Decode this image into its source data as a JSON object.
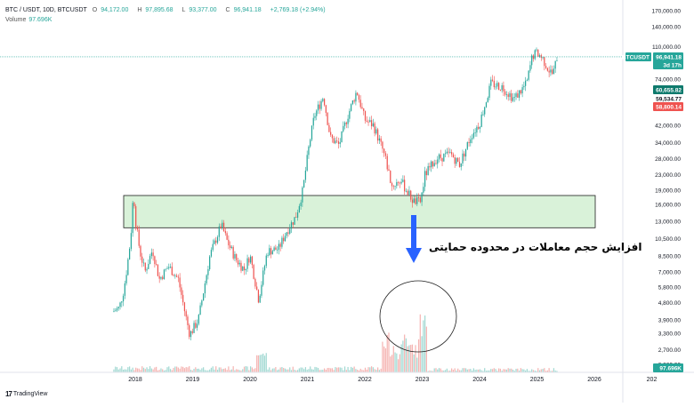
{
  "legend": {
    "symbol": "BTC / USDT, 10D, BTCUSDT",
    "open_label": "O",
    "open": "94,172.00",
    "high_label": "H",
    "high": "97,895.68",
    "low_label": "L",
    "low": "93,377.00",
    "close_label": "C",
    "close": "96,941.18",
    "change": "+2,769.18 (+2.94%)",
    "volume_label": "Volume",
    "volume_value": "97.696K"
  },
  "branding": {
    "logo_text": "TradingView"
  },
  "annotation": "افزایش حجم معاملات در محدوده حمایتی",
  "price_badges": {
    "ticker": "BTCUSDT",
    "current_price": "96,941.18",
    "countdown": "3d 17h",
    "level_1": "60,655.82",
    "level_2": "59,534.77",
    "level_3": "58,800.14",
    "volume": "97.696K"
  },
  "colors": {
    "up": "#26a69a",
    "down": "#ef5350",
    "zone_fill": "#d9f2d9",
    "price_line": "#26a69a",
    "vol_up": "#a3d9d3",
    "vol_down": "#f5b5b3"
  },
  "chart_data": {
    "type": "candlestick",
    "title": "BTC / USDT, 10D, BTCUSDT",
    "xlabel": "",
    "ylabel": "",
    "x_tick_labels": [
      "2018",
      "2019",
      "2020",
      "2021",
      "2022",
      "2023",
      "2024",
      "2025",
      "2026",
      "202"
    ],
    "y_tick_labels": [
      "170,000.00",
      "140,000.00",
      "110,000.00",
      "74,000.00",
      "60,000.00",
      "42,000.00",
      "34,000.00",
      "28,000.00",
      "23,000.00",
      "19,000.00",
      "16,000.00",
      "13,000.00",
      "10,500.00",
      "8,500.00",
      "7,000.00",
      "5,800.00",
      "4,800.00",
      "3,900.00",
      "3,300.00",
      "2,700.00",
      "2,260.00"
    ],
    "y_scale": "log",
    "ylim": [
      2050,
      178000
    ],
    "support_zone": [
      12000,
      17800
    ],
    "current_price": 96941.18,
    "annotation": "افزایش حجم معاملات در محدوده حمایتی",
    "price_path": [
      [
        2017.6,
        4300
      ],
      [
        2017.72,
        4500
      ],
      [
        2017.8,
        5600
      ],
      [
        2017.86,
        7500
      ],
      [
        2017.92,
        10500
      ],
      [
        2017.97,
        19000
      ],
      [
        2018.0,
        13500
      ],
      [
        2018.08,
        9000
      ],
      [
        2018.17,
        7000
      ],
      [
        2018.3,
        9200
      ],
      [
        2018.42,
        6400
      ],
      [
        2018.58,
        7500
      ],
      [
        2018.75,
        6400
      ],
      [
        2018.87,
        4200
      ],
      [
        2018.95,
        3250
      ],
      [
        2019.1,
        3900
      ],
      [
        2019.3,
        8500
      ],
      [
        2019.5,
        12500
      ],
      [
        2019.6,
        10200
      ],
      [
        2019.75,
        8200
      ],
      [
        2019.9,
        7200
      ],
      [
        2020.0,
        8600
      ],
      [
        2020.15,
        5000
      ],
      [
        2020.3,
        9000
      ],
      [
        2020.5,
        9300
      ],
      [
        2020.63,
        11400
      ],
      [
        2020.8,
        13800
      ],
      [
        2020.92,
        19000
      ],
      [
        2021.03,
        33000
      ],
      [
        2021.12,
        47000
      ],
      [
        2021.28,
        60000
      ],
      [
        2021.4,
        36000
      ],
      [
        2021.55,
        33000
      ],
      [
        2021.7,
        47000
      ],
      [
        2021.86,
        64000
      ],
      [
        2022.0,
        45000
      ],
      [
        2022.15,
        42000
      ],
      [
        2022.35,
        29000
      ],
      [
        2022.47,
        20000
      ],
      [
        2022.62,
        21500
      ],
      [
        2022.85,
        16500
      ],
      [
        2022.97,
        16500
      ],
      [
        2023.05,
        23000
      ],
      [
        2023.25,
        28000
      ],
      [
        2023.5,
        29500
      ],
      [
        2023.65,
        26000
      ],
      [
        2023.85,
        37000
      ],
      [
        2024.0,
        43000
      ],
      [
        2024.2,
        70000
      ],
      [
        2024.4,
        67000
      ],
      [
        2024.6,
        58000
      ],
      [
        2024.82,
        70000
      ],
      [
        2024.92,
        98000
      ],
      [
        2025.0,
        102000
      ],
      [
        2025.1,
        95000
      ],
      [
        2025.2,
        83000
      ],
      [
        2025.28,
        78000
      ],
      [
        2025.35,
        96941
      ]
    ]
  }
}
